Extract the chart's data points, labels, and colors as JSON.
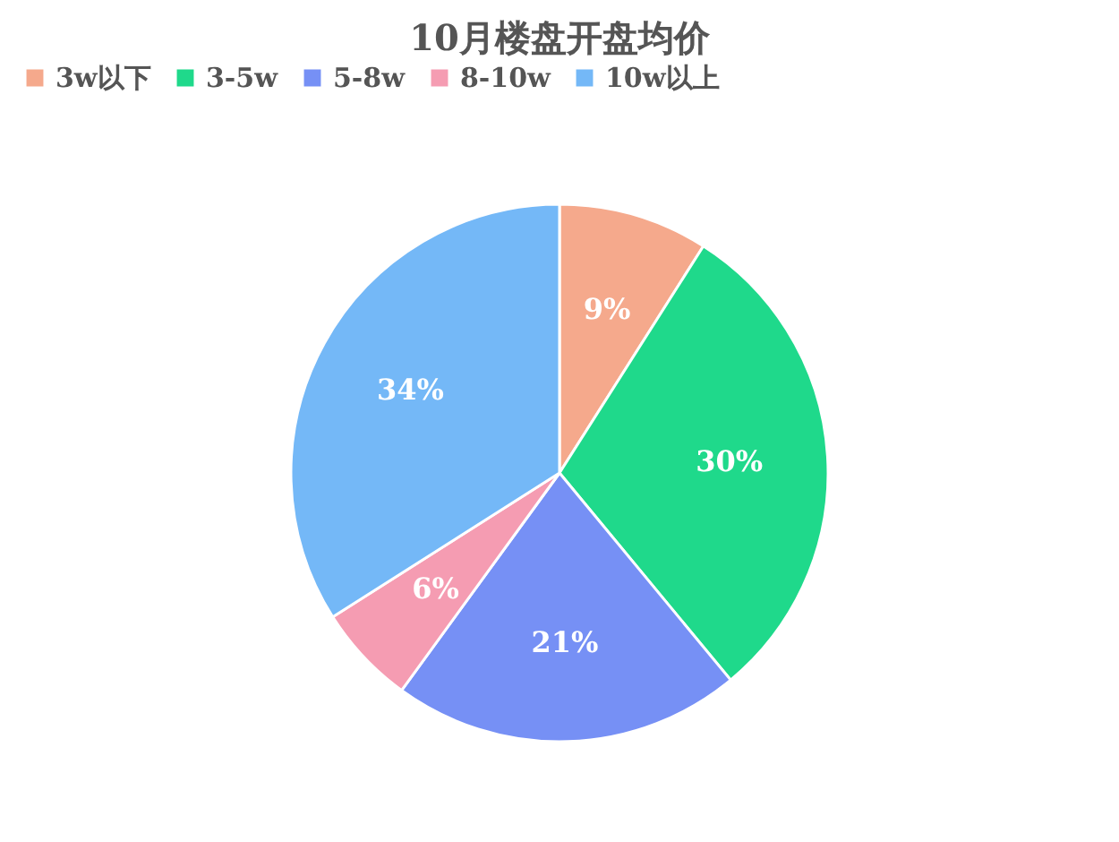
{
  "chart_data": {
    "type": "pie",
    "title": "10月楼盘开盘均价",
    "categories": [
      "3w以下",
      "3-5w",
      "5-8w",
      "8-10w",
      "10w以上"
    ],
    "values": [
      9,
      30,
      21,
      6,
      34
    ],
    "colors": [
      "#f5a98c",
      "#1fd98b",
      "#7690f5",
      "#f59cb2",
      "#74b8f7"
    ],
    "value_labels": [
      "9%",
      "30%",
      "21%",
      "6%",
      "34%"
    ],
    "legend": "top"
  }
}
